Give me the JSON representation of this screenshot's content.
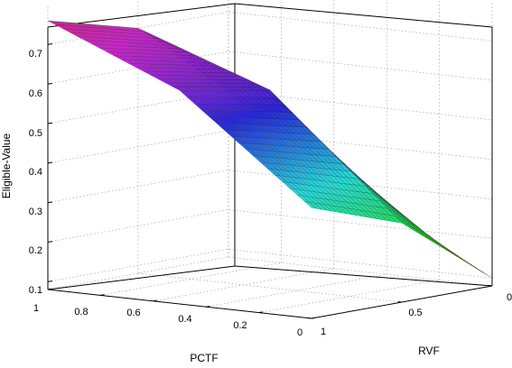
{
  "chart_data": {
    "type": "surface3d",
    "title": "",
    "xlabel": "PCTF",
    "ylabel": "RVF",
    "zlabel": "Eligible-Value",
    "xlim": [
      0,
      1
    ],
    "ylim": [
      0,
      1
    ],
    "zlim": [
      0.08,
      0.75
    ],
    "xticks": [
      "0",
      "0.2",
      "0.4",
      "0.6",
      "0.8",
      "1"
    ],
    "yticks": [
      "0",
      "0.5",
      "1"
    ],
    "zticks": [
      "0.1",
      "0.2",
      "0.3",
      "0.4",
      "0.5",
      "0.6",
      "0.7"
    ],
    "grid": true,
    "colormap": "hsv",
    "x": [
      0,
      0.5,
      1
    ],
    "y": [
      0,
      0.5,
      1
    ],
    "z": [
      [
        0.36,
        0.28,
        0.1
      ],
      [
        0.62,
        0.58,
        0.27
      ],
      [
        0.76,
        0.7,
        0.5
      ]
    ],
    "z_rows_are": "x",
    "z_cols_are": "y"
  }
}
